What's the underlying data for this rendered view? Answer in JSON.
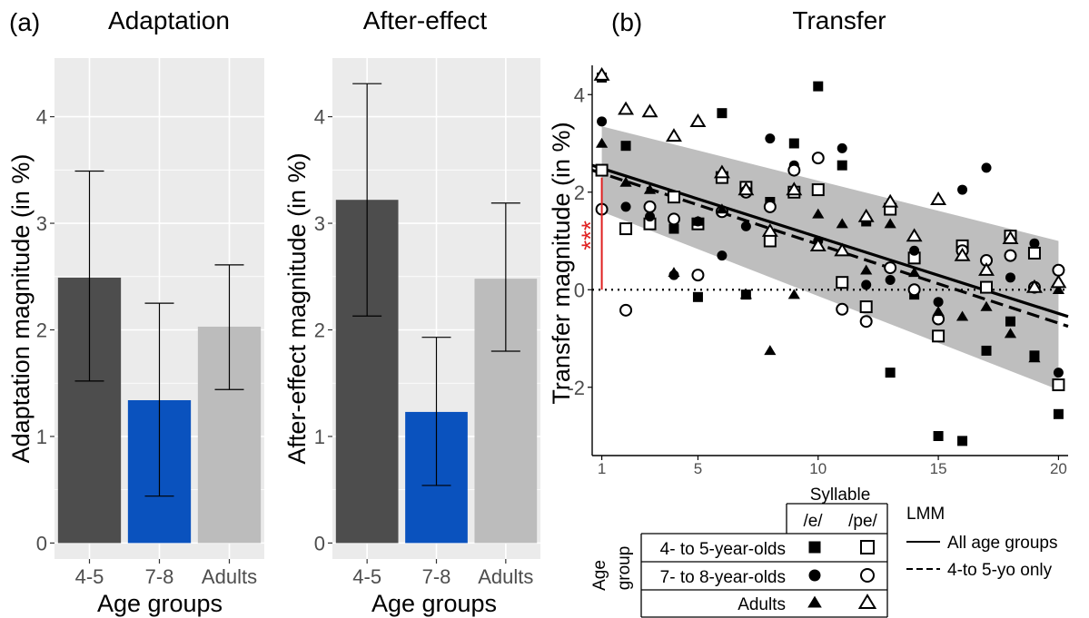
{
  "panel_labels": {
    "a": "(a)",
    "b": "(b)"
  },
  "colors": {
    "panel_bg": "#ebebeb",
    "grid": "#ffffff",
    "bar_4_5": "#4d4d4d",
    "bar_7_8": "#0a52be",
    "bar_adults": "#bcbcbc",
    "ribbon": "#bebebe",
    "significance": "#e02020",
    "ink": "#000000",
    "tick_text": "#4d4d4d"
  },
  "chart_data": [
    {
      "type": "bar",
      "title": "Adaptation",
      "xlabel": "Age groups",
      "ylabel": "Adaptation magnitude (in %)",
      "categories": [
        "4-5",
        "7-8",
        "Adults"
      ],
      "values": [
        2.49,
        1.34,
        2.03
      ],
      "error_low": [
        1.52,
        0.44,
        1.44
      ],
      "error_high": [
        3.49,
        2.25,
        2.61
      ],
      "ylim": [
        -0.15,
        4.55
      ],
      "yticks": [
        0,
        1,
        2,
        3,
        4
      ],
      "grid": true
    },
    {
      "type": "bar",
      "title": "After-effect",
      "xlabel": "Age groups",
      "ylabel": "After-effect magnitude (in %)",
      "categories": [
        "4-5",
        "7-8",
        "Adults"
      ],
      "values": [
        3.22,
        1.23,
        2.48
      ],
      "error_low": [
        2.13,
        0.54,
        1.8
      ],
      "error_high": [
        4.31,
        1.93,
        3.19
      ],
      "ylim": [
        -0.15,
        4.55
      ],
      "yticks": [
        0,
        1,
        2,
        3,
        4
      ],
      "grid": true
    },
    {
      "type": "scatter",
      "title": "Transfer",
      "ylabel": "Transfer magnitude (in %)",
      "xlim": [
        0.6,
        20.4
      ],
      "ylim": [
        -3.4,
        4.6
      ],
      "xticks": [
        1,
        5,
        10,
        15,
        20
      ],
      "yticks": [
        -2,
        0,
        2,
        4
      ],
      "grid": false,
      "zero_line": 0,
      "ribbon": {
        "x": [
          1,
          20
        ],
        "lower": [
          1.6,
          -2.05
        ],
        "upper": [
          3.35,
          1.0
        ]
      },
      "lines": [
        {
          "name": "All age groups",
          "style": "solid",
          "x": [
            0.6,
            20.4
          ],
          "y": [
            2.55,
            -0.55
          ]
        },
        {
          "name": "4-to 5-yo only",
          "style": "dashed",
          "x": [
            0.6,
            20.4
          ],
          "y": [
            2.45,
            -0.75
          ]
        }
      ],
      "significance": {
        "x": 1,
        "y_from": 0,
        "y_to": 2.3,
        "label": "***"
      },
      "series": [
        {
          "group": "4- to 5-year-olds",
          "syllable": "/e/",
          "marker": "square",
          "filled": true,
          "points": [
            [
              1,
              4.35
            ],
            [
              2,
              2.95
            ],
            [
              3,
              1.35
            ],
            [
              4,
              1.25
            ],
            [
              5,
              -0.15
            ],
            [
              6,
              3.62
            ],
            [
              7,
              -0.1
            ],
            [
              8,
              1.8
            ],
            [
              9,
              3.0
            ],
            [
              10,
              4.17
            ],
            [
              11,
              2.55
            ],
            [
              12,
              1.4
            ],
            [
              13,
              -1.7
            ],
            [
              14,
              -0.1
            ],
            [
              15,
              -3.0
            ],
            [
              16,
              -3.1
            ],
            [
              17,
              -1.25
            ],
            [
              18,
              -0.65
            ],
            [
              19,
              -1.35
            ],
            [
              20,
              -2.55
            ]
          ]
        },
        {
          "group": "4- to 5-year-olds",
          "syllable": "/pe/",
          "marker": "square",
          "filled": false,
          "points": [
            [
              1,
              2.45
            ],
            [
              2,
              1.25
            ],
            [
              3,
              1.35
            ],
            [
              4,
              1.9
            ],
            [
              5,
              1.35
            ],
            [
              6,
              2.3
            ],
            [
              7,
              2.1
            ],
            [
              8,
              1.0
            ],
            [
              9,
              2.0
            ],
            [
              10,
              2.05
            ],
            [
              11,
              0.15
            ],
            [
              12,
              -0.35
            ],
            [
              13,
              1.65
            ],
            [
              14,
              0.65
            ],
            [
              15,
              -0.95
            ],
            [
              16,
              0.9
            ],
            [
              17,
              0.05
            ],
            [
              18,
              1.1
            ],
            [
              19,
              0.75
            ],
            [
              20,
              -1.95
            ]
          ]
        },
        {
          "group": "7- to 8-year-olds",
          "syllable": "/e/",
          "marker": "circle",
          "filled": true,
          "points": [
            [
              1,
              3.45
            ],
            [
              2,
              1.7
            ],
            [
              3,
              1.5
            ],
            [
              4,
              0.3
            ],
            [
              5,
              1.4
            ],
            [
              6,
              0.7
            ],
            [
              7,
              1.3
            ],
            [
              8,
              3.1
            ],
            [
              9,
              2.55
            ],
            [
              10,
              1.0
            ],
            [
              11,
              2.9
            ],
            [
              12,
              0.1
            ],
            [
              13,
              0.2
            ],
            [
              14,
              0.8
            ],
            [
              15,
              -0.25
            ],
            [
              16,
              2.05
            ],
            [
              17,
              2.5
            ],
            [
              18,
              0.25
            ],
            [
              19,
              0.95
            ],
            [
              20,
              -1.7
            ]
          ]
        },
        {
          "group": "7- to 8-year-olds",
          "syllable": "/pe/",
          "marker": "circle",
          "filled": false,
          "points": [
            [
              1,
              1.65
            ],
            [
              2,
              -0.42
            ],
            [
              3,
              1.7
            ],
            [
              4,
              1.45
            ],
            [
              5,
              0.3
            ],
            [
              6,
              1.6
            ],
            [
              7,
              2.0
            ],
            [
              8,
              1.7
            ],
            [
              9,
              2.45
            ],
            [
              10,
              2.7
            ],
            [
              11,
              -0.4
            ],
            [
              12,
              -0.65
            ],
            [
              13,
              0.45
            ],
            [
              14,
              0.0
            ],
            [
              15,
              -0.6
            ],
            [
              16,
              0.8
            ],
            [
              17,
              0.6
            ],
            [
              18,
              0.7
            ],
            [
              19,
              0.05
            ],
            [
              20,
              0.4
            ]
          ]
        },
        {
          "group": "Adults",
          "syllable": "/e/",
          "marker": "triangle",
          "filled": true,
          "points": [
            [
              1,
              3.0
            ],
            [
              2,
              2.2
            ],
            [
              3,
              2.05
            ],
            [
              4,
              0.35
            ],
            [
              5,
              1.4
            ],
            [
              6,
              1.65
            ],
            [
              7,
              -0.1
            ],
            [
              8,
              -1.25
            ],
            [
              9,
              -0.1
            ],
            [
              10,
              1.55
            ],
            [
              11,
              1.35
            ],
            [
              12,
              0.4
            ],
            [
              13,
              1.35
            ],
            [
              14,
              0.35
            ],
            [
              15,
              -0.45
            ],
            [
              16,
              -0.55
            ],
            [
              17,
              -0.35
            ],
            [
              18,
              -0.9
            ],
            [
              19,
              -1.4
            ],
            [
              20,
              0.0
            ]
          ]
        },
        {
          "group": "Adults",
          "syllable": "/pe/",
          "marker": "triangle",
          "filled": false,
          "points": [
            [
              1,
              4.4
            ],
            [
              2,
              3.7
            ],
            [
              3,
              3.65
            ],
            [
              4,
              3.15
            ],
            [
              5,
              3.45
            ],
            [
              6,
              2.4
            ],
            [
              7,
              2.05
            ],
            [
              8,
              1.2
            ],
            [
              9,
              2.05
            ],
            [
              10,
              0.9
            ],
            [
              11,
              0.8
            ],
            [
              12,
              1.5
            ],
            [
              13,
              1.8
            ],
            [
              14,
              1.1
            ],
            [
              15,
              1.85
            ],
            [
              16,
              0.7
            ],
            [
              17,
              0.4
            ],
            [
              18,
              1.05
            ],
            [
              19,
              0.05
            ],
            [
              20,
              0.15
            ]
          ]
        }
      ]
    }
  ],
  "legend": {
    "syllable_header": "Syllable",
    "syllables": [
      "/e/",
      "/pe/"
    ],
    "age_header_line1": "Age",
    "age_header_line2": "group",
    "groups": [
      "4- to 5-year-olds",
      "7- to 8-year-olds",
      "Adults"
    ],
    "lmm_title": "LMM",
    "lmm_items": [
      "All age groups",
      "4-to 5-yo only"
    ]
  }
}
